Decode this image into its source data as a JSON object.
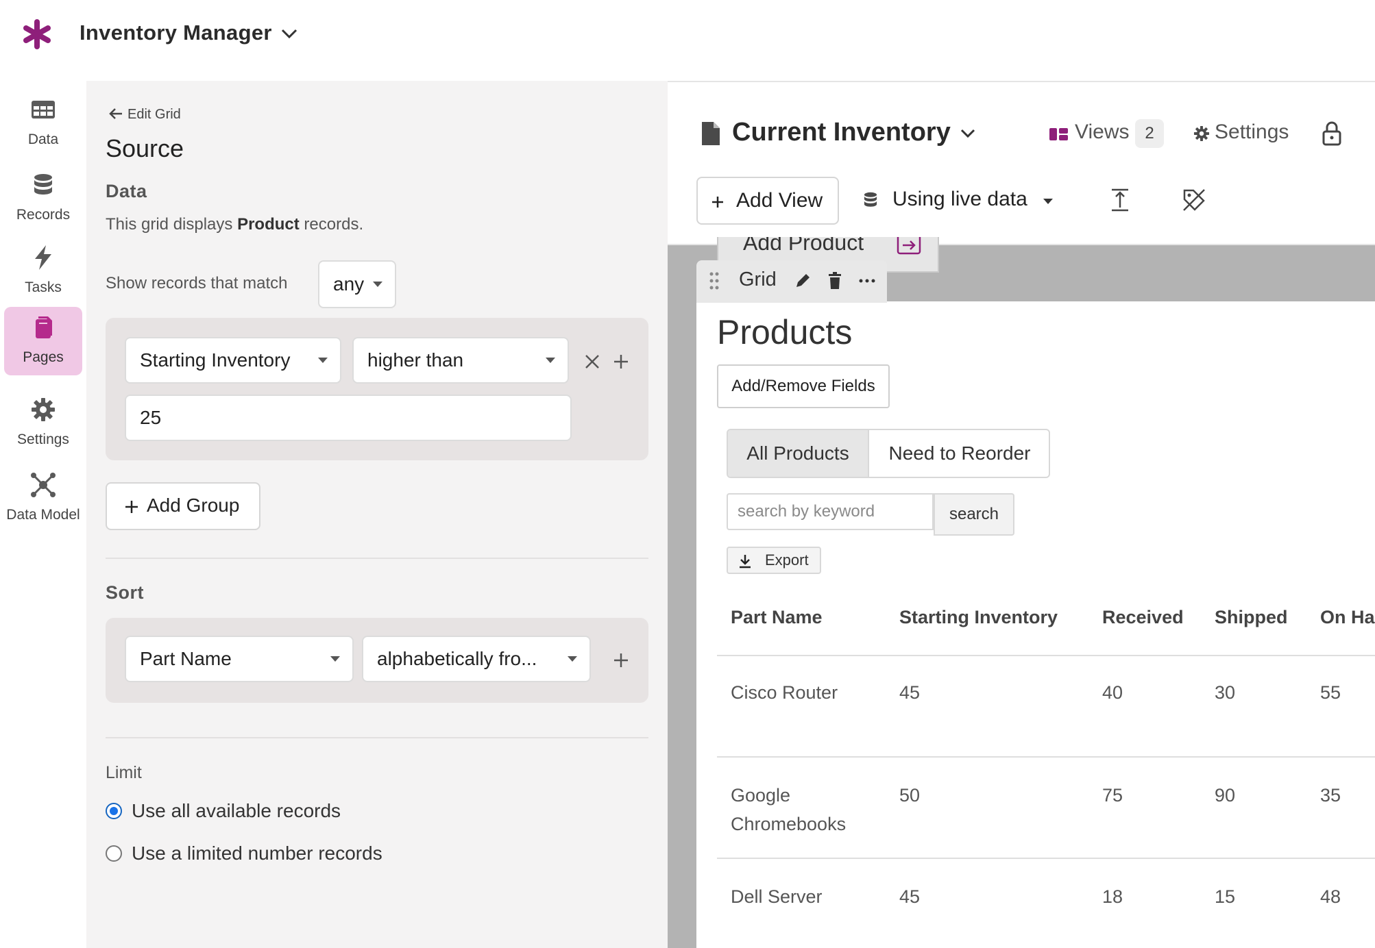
{
  "app": {
    "title": "Inventory Manager"
  },
  "nav": [
    {
      "label": "Data",
      "icon": "table-icon"
    },
    {
      "label": "Records",
      "icon": "database-icon"
    },
    {
      "label": "Tasks",
      "icon": "lightning-icon"
    },
    {
      "label": "Pages",
      "icon": "pages-icon",
      "active": true
    },
    {
      "label": "Settings",
      "icon": "gear-icon"
    },
    {
      "label": "Data Model",
      "icon": "network-icon"
    }
  ],
  "editor": {
    "back_label": "Edit Grid",
    "title": "Source",
    "data_heading": "Data",
    "desc_prefix": "This grid displays ",
    "desc_object": "Product",
    "desc_suffix": " records.",
    "match_label": "Show records that match",
    "match_value": "any",
    "filter": {
      "field": "Starting Inventory",
      "operator": "higher than",
      "value": "25"
    },
    "add_group_label": "Add Group",
    "sort_heading": "Sort",
    "sort": {
      "field": "Part Name",
      "order": "alphabetically fro..."
    },
    "limit_heading": "Limit",
    "limit_options": [
      "Use all available records",
      "Use a limited number records"
    ],
    "limit_selected": 0
  },
  "page": {
    "title": "Current Inventory",
    "views_label": "Views",
    "views_count": "2",
    "settings_label": "Settings",
    "add_view_label": "Add View",
    "data_mode_label": "Using live data",
    "prev_element_label": "Add Product",
    "grid_tab_label": "Grid"
  },
  "grid": {
    "heading": "Products",
    "add_remove_label": "Add/Remove Fields",
    "tabs": [
      "All Products",
      "Need to Reorder"
    ],
    "active_tab": 0,
    "search_placeholder": "search by keyword",
    "search_button": "search",
    "export_label": "Export",
    "columns": [
      "Part Name",
      "Starting Inventory",
      "Received",
      "Shipped",
      "On Ha"
    ],
    "rows": [
      [
        "Cisco Router",
        "45",
        "40",
        "30",
        "55"
      ],
      [
        "Google Chromebooks",
        "50",
        "75",
        "90",
        "35"
      ],
      [
        "Dell Server",
        "45",
        "18",
        "15",
        "48"
      ]
    ]
  },
  "colors": {
    "accent": "#8e1f7a",
    "active_nav_bg": "#f0c8e5",
    "radio_selected": "#1a73e8"
  }
}
